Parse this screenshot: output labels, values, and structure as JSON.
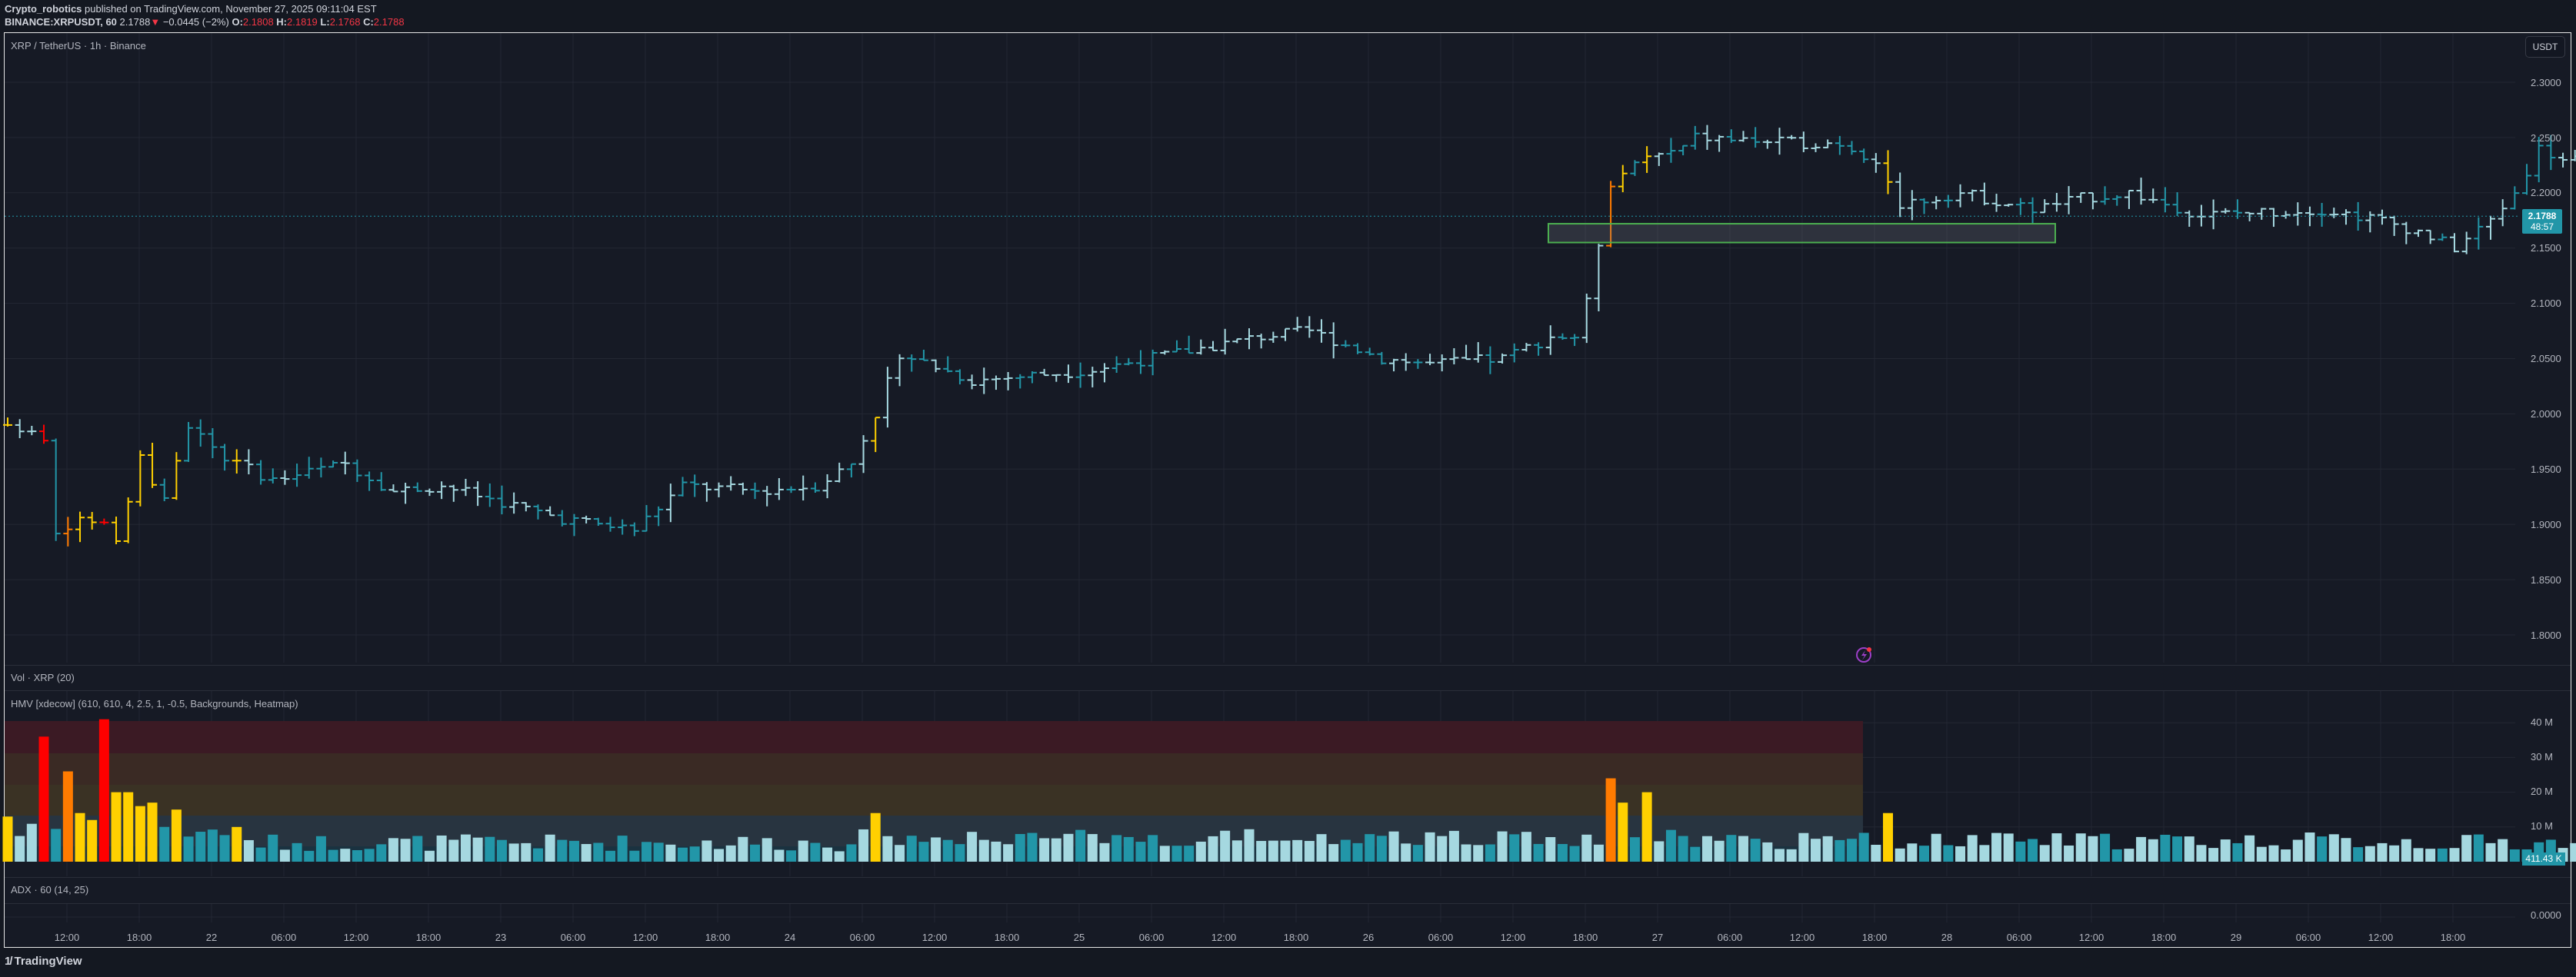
{
  "header": {
    "author": "Crypto_robotics",
    "published_text": " published on TradingView.com, November 27, 2025 09:11:04 EST",
    "symbol_line": "BINANCE:XRPUSDT, 60",
    "last_price": "2.1788",
    "change": "−0.0445 (−2%)",
    "open_label": "O:",
    "open": "2.1808",
    "high_label": "H:",
    "high": "2.1819",
    "low_label": "L:",
    "low": "2.1768",
    "close_label": "C:",
    "close": "2.1788"
  },
  "main_pane": {
    "title": "XRP / TetherUS · 1h · Binance",
    "currency_button": "USDT",
    "price_tag": "2.1788",
    "countdown": "48:57"
  },
  "vol_pane": {
    "title": "Vol · XRP (20)"
  },
  "hmv_pane": {
    "title": "HMV [xdecow] (610, 610, 4, 2.5, 1, -0.5, Backgrounds, Heatmap)",
    "last_volume": "411.43 K"
  },
  "adx_pane": {
    "title": "ADX · 60 (14, 25)",
    "axis_label": "0.0000"
  },
  "footer": {
    "brand": "TradingView"
  },
  "colors": {
    "background": "#161a25",
    "grid": "#232733",
    "bar_light": "#a5d8e0",
    "bar_teal": "#2296a8",
    "bar_yellow": "#ffd000",
    "bar_orange": "#ff7b00",
    "bar_red": "#ff0000",
    "zone_border": "#4caf50",
    "accent": "#2296a8"
  },
  "chart_data": [
    {
      "type": "ohlc",
      "title": "XRP / TetherUS · 1h · Binance",
      "ylabel": "USDT",
      "ylim": [
        1.78,
        2.31
      ],
      "y_ticks": [
        "2.3000",
        "2.2500",
        "2.2000",
        "2.1500",
        "2.1000",
        "2.0500",
        "2.0000",
        "1.9500",
        "1.9000",
        "1.8500",
        "1.8000"
      ],
      "x_ticks": [
        "12:00",
        "18:00",
        "22",
        "06:00",
        "12:00",
        "18:00",
        "23",
        "06:00",
        "12:00",
        "18:00",
        "24",
        "06:00",
        "12:00",
        "18:00",
        "25",
        "06:00",
        "12:00",
        "18:00",
        "26",
        "06:00",
        "12:00",
        "18:00",
        "27",
        "06:00",
        "12:00",
        "18:00",
        "28",
        "06:00",
        "12:00",
        "18:00",
        "29",
        "06:00",
        "12:00",
        "18:00"
      ],
      "grid": true,
      "last_value": 2.1788,
      "zone": {
        "price_top": 2.172,
        "price_bottom": 2.155,
        "color": "#4caf50"
      },
      "bars": "OHLC hourly bars, approx range 1.82–2.29; rally from ~1.90 (Nov 21) to ~2.29 peak (Nov 24 late), consolidation 2.15–2.26, last 2.1788"
    },
    {
      "type": "bar",
      "title": "HMV [xdecow] (610, 610, 4, 2.5, 1, -0.5, Backgrounds, Heatmap)",
      "ylabel": "Volume",
      "ylim": [
        0,
        45000000
      ],
      "y_ticks": [
        "10 M",
        "20 M",
        "30 M",
        "40 M"
      ],
      "last_value": "411.43 K",
      "legend": [
        "normal (teal/light)",
        "high (yellow)",
        "very high (orange)",
        "extreme (red)"
      ]
    },
    {
      "type": "line",
      "title": "ADX · 60 (14, 25)",
      "y_ticks": [
        "0.0000"
      ]
    }
  ]
}
